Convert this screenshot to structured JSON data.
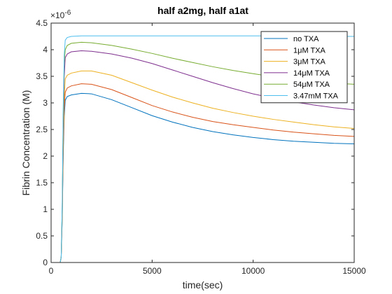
{
  "chart_data": {
    "type": "line",
    "title": "half a2mg, half a1at",
    "xlabel": "time(sec)",
    "ylabel": "Fibrin Concentration (M)",
    "y_exponent_label": "×10",
    "y_exponent_power": "-6",
    "xlim": [
      0,
      15000
    ],
    "ylim": [
      0,
      4.5
    ],
    "x_ticks": [
      0,
      5000,
      10000,
      15000
    ],
    "x_tick_labels": [
      "0",
      "5000",
      "10000",
      "15000"
    ],
    "y_ticks": [
      0,
      0.5,
      1,
      1.5,
      2,
      2.5,
      3,
      3.5,
      4,
      4.5
    ],
    "y_tick_labels": [
      "0",
      "0.5",
      "1",
      "1.5",
      "2",
      "2.5",
      "3",
      "3.5",
      "4",
      "4.5"
    ],
    "grid": false,
    "legend_position": "top-right",
    "series": [
      {
        "name": "no TXA",
        "color": "#0072BD",
        "x": [
          0,
          450,
          500,
          550,
          600,
          650,
          700,
          800,
          1000,
          1500,
          2000,
          3000,
          4000,
          5000,
          6000,
          7000,
          8000,
          9000,
          10000,
          11000,
          12000,
          13000,
          14000,
          15000
        ],
        "y": [
          0,
          0,
          0.1,
          0.8,
          2.0,
          2.75,
          3.05,
          3.12,
          3.15,
          3.18,
          3.17,
          3.06,
          2.91,
          2.76,
          2.64,
          2.54,
          2.46,
          2.4,
          2.35,
          2.31,
          2.28,
          2.26,
          2.24,
          2.23
        ]
      },
      {
        "name": "1μM TXA",
        "color": "#D95319",
        "x": [
          0,
          450,
          500,
          550,
          600,
          650,
          700,
          800,
          1000,
          1500,
          2000,
          3000,
          4000,
          5000,
          6000,
          7000,
          8000,
          9000,
          10000,
          11000,
          12000,
          13000,
          14000,
          15000
        ],
        "y": [
          0,
          0,
          0.1,
          0.85,
          2.1,
          2.9,
          3.2,
          3.28,
          3.32,
          3.36,
          3.35,
          3.25,
          3.1,
          2.95,
          2.83,
          2.73,
          2.65,
          2.59,
          2.54,
          2.49,
          2.45,
          2.42,
          2.39,
          2.37
        ]
      },
      {
        "name": "3μM TXA",
        "color": "#EDB120",
        "x": [
          0,
          450,
          500,
          550,
          600,
          650,
          700,
          800,
          1000,
          1500,
          2000,
          3000,
          4000,
          5000,
          6000,
          7000,
          8000,
          9000,
          10000,
          11000,
          12000,
          13000,
          14000,
          15000
        ],
        "y": [
          0,
          0,
          0.1,
          0.9,
          2.3,
          3.1,
          3.45,
          3.52,
          3.56,
          3.6,
          3.6,
          3.52,
          3.38,
          3.24,
          3.11,
          3.0,
          2.9,
          2.82,
          2.75,
          2.69,
          2.64,
          2.59,
          2.55,
          2.52
        ]
      },
      {
        "name": "14μM TXA",
        "color": "#7E2F8E",
        "x": [
          0,
          450,
          500,
          550,
          600,
          650,
          700,
          800,
          1000,
          1500,
          2000,
          3000,
          4000,
          5000,
          6000,
          7000,
          8000,
          9000,
          10000,
          11000,
          12000,
          13000,
          14000,
          15000
        ],
        "y": [
          0,
          0,
          0.1,
          1.0,
          2.6,
          3.5,
          3.85,
          3.92,
          3.96,
          3.98,
          3.97,
          3.92,
          3.84,
          3.74,
          3.62,
          3.5,
          3.38,
          3.27,
          3.17,
          3.09,
          3.02,
          2.96,
          2.91,
          2.87
        ]
      },
      {
        "name": "54μM TXA",
        "color": "#77AC30",
        "x": [
          0,
          450,
          500,
          550,
          600,
          650,
          700,
          800,
          1000,
          1500,
          2000,
          3000,
          4000,
          5000,
          6000,
          7000,
          8000,
          9000,
          10000,
          11000,
          12000,
          13000,
          14000,
          15000
        ],
        "y": [
          0,
          0,
          0.1,
          1.05,
          2.8,
          3.75,
          4.0,
          4.08,
          4.12,
          4.14,
          4.13,
          4.08,
          4.01,
          3.93,
          3.84,
          3.76,
          3.68,
          3.61,
          3.55,
          3.49,
          3.45,
          3.41,
          3.37,
          3.35
        ]
      },
      {
        "name": "3.47mM TXA",
        "color": "#4DBEEE",
        "x": [
          0,
          450,
          500,
          550,
          600,
          650,
          700,
          800,
          1000,
          1500,
          2000,
          3000,
          4000,
          5000,
          6000,
          7000,
          8000,
          9000,
          10000,
          11000,
          12000,
          13000,
          14000,
          15000
        ],
        "y": [
          0,
          0,
          0.1,
          1.1,
          2.9,
          3.9,
          4.18,
          4.23,
          4.25,
          4.26,
          4.26,
          4.26,
          4.26,
          4.26,
          4.26,
          4.26,
          4.26,
          4.26,
          4.26,
          4.26,
          4.26,
          4.26,
          4.25,
          4.25
        ]
      }
    ]
  }
}
